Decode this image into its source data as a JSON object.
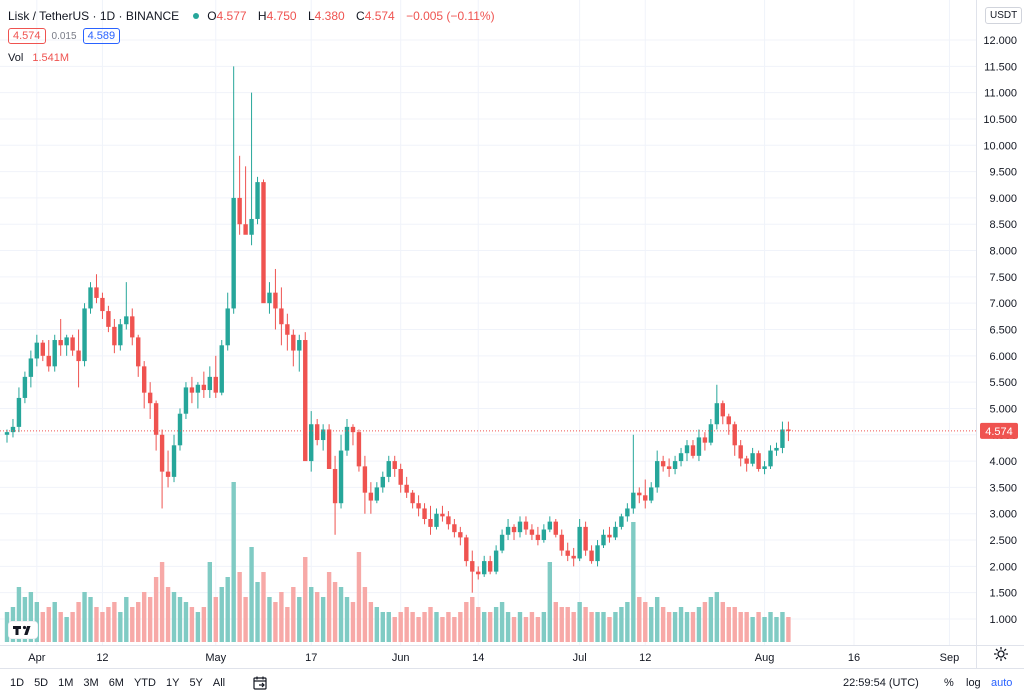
{
  "header": {
    "symbol": "Lisk / TetherUS",
    "interval": "1D",
    "exchange": "BINANCE",
    "ohlc": [
      {
        "label": "O",
        "value": "4.577"
      },
      {
        "label": "H",
        "value": "4.750"
      },
      {
        "label": "L",
        "value": "4.380"
      },
      {
        "label": "C",
        "value": "4.574"
      }
    ],
    "change": "−0.005 (−0.11%)",
    "sell_price": "4.574",
    "spread": "0.015",
    "buy_price": "4.589",
    "volume_label": "Vol",
    "volume_value": "1.541M",
    "currency": "USDT"
  },
  "colors": {
    "up": "#26a69a",
    "down": "#ef5350",
    "up_volume": "#80cbc4",
    "down_volume": "#f7a9a7",
    "accent": "#2962ff",
    "grid": "#f0f3fa"
  },
  "chart_data": {
    "type": "candlestick",
    "y_axis": {
      "min": 0.75,
      "max": 12.25,
      "ticks": [
        "12.000",
        "11.500",
        "11.000",
        "10.500",
        "10.000",
        "9.500",
        "9.000",
        "8.500",
        "8.000",
        "7.500",
        "7.000",
        "6.500",
        "6.000",
        "5.500",
        "5.000",
        "4.500",
        "4.000",
        "3.500",
        "3.000",
        "2.500",
        "2.000",
        "1.500",
        "1.000"
      ]
    },
    "x_axis": {
      "labels": [
        {
          "text": "Apr",
          "index": 5
        },
        {
          "text": "12",
          "index": 16
        },
        {
          "text": "May",
          "index": 35
        },
        {
          "text": "17",
          "index": 51
        },
        {
          "text": "Jun",
          "index": 66
        },
        {
          "text": "14",
          "index": 79
        },
        {
          "text": "Jul",
          "index": 96
        },
        {
          "text": "12",
          "index": 107
        },
        {
          "text": "Aug",
          "index": 127
        },
        {
          "text": "16",
          "index": 142
        },
        {
          "text": "Sep",
          "index": 158
        }
      ]
    },
    "last_price": 4.574,
    "last_price_label": "4.574",
    "grid": true,
    "series": [
      [
        4.5,
        4.6,
        4.35,
        4.55,
        0.6
      ],
      [
        4.55,
        4.8,
        4.45,
        4.65,
        0.7
      ],
      [
        4.65,
        5.4,
        4.55,
        5.2,
        1.1
      ],
      [
        5.2,
        5.7,
        5.1,
        5.6,
        0.9
      ],
      [
        5.6,
        6.1,
        5.4,
        5.95,
        1.0
      ],
      [
        5.95,
        6.4,
        5.8,
        6.25,
        0.8
      ],
      [
        6.25,
        6.3,
        5.9,
        6.0,
        0.6
      ],
      [
        6.0,
        6.3,
        5.7,
        5.8,
        0.7
      ],
      [
        5.8,
        6.4,
        5.7,
        6.3,
        0.8
      ],
      [
        6.3,
        6.7,
        6.0,
        6.2,
        0.6
      ],
      [
        6.2,
        6.4,
        6.0,
        6.35,
        0.5
      ],
      [
        6.35,
        6.4,
        6.0,
        6.1,
        0.6
      ],
      [
        6.1,
        6.5,
        5.4,
        5.9,
        0.8
      ],
      [
        5.9,
        7.0,
        5.8,
        6.9,
        1.0
      ],
      [
        6.9,
        7.4,
        6.8,
        7.3,
        0.9
      ],
      [
        7.3,
        7.55,
        7.0,
        7.1,
        0.7
      ],
      [
        7.1,
        7.2,
        6.7,
        6.85,
        0.6
      ],
      [
        6.85,
        6.95,
        6.45,
        6.55,
        0.7
      ],
      [
        6.55,
        6.7,
        6.05,
        6.2,
        0.8
      ],
      [
        6.2,
        6.7,
        6.1,
        6.6,
        0.6
      ],
      [
        6.6,
        7.4,
        6.5,
        6.75,
        0.9
      ],
      [
        6.75,
        6.9,
        6.2,
        6.35,
        0.7
      ],
      [
        6.35,
        6.4,
        5.6,
        5.8,
        0.8
      ],
      [
        5.8,
        5.9,
        5.0,
        5.3,
        1.0
      ],
      [
        5.3,
        5.5,
        4.8,
        5.1,
        0.9
      ],
      [
        5.1,
        5.15,
        4.2,
        4.5,
        1.3
      ],
      [
        4.5,
        4.6,
        3.1,
        3.8,
        1.6
      ],
      [
        3.8,
        4.2,
        3.5,
        3.7,
        1.1
      ],
      [
        3.7,
        4.5,
        3.6,
        4.3,
        1.0
      ],
      [
        4.3,
        5.0,
        4.2,
        4.9,
        0.9
      ],
      [
        4.9,
        5.5,
        4.8,
        5.4,
        0.8
      ],
      [
        5.4,
        5.6,
        5.1,
        5.3,
        0.7
      ],
      [
        5.3,
        5.5,
        5.0,
        5.45,
        0.6
      ],
      [
        5.45,
        5.7,
        5.2,
        5.35,
        0.7
      ],
      [
        5.35,
        5.8,
        5.2,
        5.6,
        1.6
      ],
      [
        5.6,
        6.0,
        5.2,
        5.3,
        0.9
      ],
      [
        5.3,
        6.3,
        5.25,
        6.2,
        1.1
      ],
      [
        6.2,
        7.2,
        6.1,
        6.9,
        1.3
      ],
      [
        6.9,
        11.5,
        6.8,
        9.0,
        3.2
      ],
      [
        9.0,
        9.8,
        8.3,
        8.5,
        1.4
      ],
      [
        8.5,
        9.6,
        8.4,
        8.3,
        0.9
      ],
      [
        8.3,
        11.0,
        8.1,
        8.6,
        1.9
      ],
      [
        8.6,
        9.4,
        8.5,
        9.3,
        1.2
      ],
      [
        9.3,
        9.35,
        7.1,
        7.0,
        1.4
      ],
      [
        7.0,
        7.4,
        6.8,
        7.2,
        0.9
      ],
      [
        7.2,
        7.65,
        6.5,
        6.9,
        0.8
      ],
      [
        6.9,
        7.3,
        6.2,
        6.6,
        1.0
      ],
      [
        6.6,
        6.8,
        6.1,
        6.4,
        0.7
      ],
      [
        6.4,
        6.5,
        5.8,
        6.1,
        1.1
      ],
      [
        6.1,
        6.4,
        5.7,
        6.3,
        0.9
      ],
      [
        6.3,
        6.45,
        4.8,
        4.0,
        1.7
      ],
      [
        4.0,
        4.95,
        3.8,
        4.7,
        1.1
      ],
      [
        4.7,
        4.8,
        4.3,
        4.4,
        1.0
      ],
      [
        4.4,
        4.7,
        4.2,
        4.6,
        0.9
      ],
      [
        4.6,
        4.7,
        4.0,
        3.85,
        1.4
      ],
      [
        3.85,
        4.1,
        2.6,
        3.2,
        1.2
      ],
      [
        3.2,
        4.5,
        3.1,
        4.2,
        1.1
      ],
      [
        4.2,
        4.8,
        4.1,
        4.65,
        0.9
      ],
      [
        4.65,
        4.7,
        4.3,
        4.55,
        0.8
      ],
      [
        4.55,
        4.6,
        3.8,
        3.9,
        1.8
      ],
      [
        3.9,
        4.1,
        3.0,
        3.4,
        1.1
      ],
      [
        3.4,
        3.6,
        3.0,
        3.25,
        0.8
      ],
      [
        3.25,
        3.6,
        3.2,
        3.5,
        0.7
      ],
      [
        3.5,
        3.8,
        3.4,
        3.7,
        0.6
      ],
      [
        3.7,
        4.1,
        3.6,
        4.0,
        0.6
      ],
      [
        4.0,
        4.1,
        3.7,
        3.85,
        0.5
      ],
      [
        3.85,
        3.95,
        3.4,
        3.55,
        0.6
      ],
      [
        3.55,
        3.7,
        3.3,
        3.4,
        0.7
      ],
      [
        3.4,
        3.45,
        3.1,
        3.2,
        0.6
      ],
      [
        3.2,
        3.35,
        2.95,
        3.1,
        0.5
      ],
      [
        3.1,
        3.2,
        2.8,
        2.9,
        0.6
      ],
      [
        2.9,
        3.15,
        2.6,
        2.75,
        0.7
      ],
      [
        2.75,
        3.1,
        2.7,
        3.0,
        0.6
      ],
      [
        3.0,
        3.15,
        2.85,
        2.95,
        0.5
      ],
      [
        2.95,
        3.05,
        2.7,
        2.8,
        0.6
      ],
      [
        2.8,
        2.9,
        2.55,
        2.65,
        0.5
      ],
      [
        2.65,
        2.75,
        2.4,
        2.55,
        0.6
      ],
      [
        2.55,
        2.6,
        2.0,
        2.1,
        0.8
      ],
      [
        2.1,
        2.3,
        1.5,
        1.9,
        0.9
      ],
      [
        1.9,
        2.0,
        1.75,
        1.85,
        0.7
      ],
      [
        1.85,
        2.2,
        1.8,
        2.1,
        0.6
      ],
      [
        2.1,
        2.2,
        1.85,
        1.9,
        0.6
      ],
      [
        1.9,
        2.4,
        1.85,
        2.3,
        0.7
      ],
      [
        2.3,
        2.7,
        2.25,
        2.6,
        0.8
      ],
      [
        2.6,
        2.9,
        2.5,
        2.75,
        0.6
      ],
      [
        2.75,
        2.8,
        2.5,
        2.65,
        0.5
      ],
      [
        2.65,
        2.95,
        2.55,
        2.85,
        0.6
      ],
      [
        2.85,
        2.95,
        2.6,
        2.7,
        0.5
      ],
      [
        2.7,
        2.8,
        2.5,
        2.6,
        0.6
      ],
      [
        2.6,
        2.75,
        2.4,
        2.5,
        0.5
      ],
      [
        2.5,
        2.8,
        2.45,
        2.7,
        0.6
      ],
      [
        2.7,
        2.95,
        2.65,
        2.85,
        1.6
      ],
      [
        2.85,
        2.9,
        2.55,
        2.6,
        0.8
      ],
      [
        2.6,
        2.7,
        2.2,
        2.3,
        0.7
      ],
      [
        2.3,
        2.45,
        2.1,
        2.2,
        0.7
      ],
      [
        2.2,
        2.35,
        2.0,
        2.15,
        0.6
      ],
      [
        2.15,
        2.9,
        2.1,
        2.75,
        0.8
      ],
      [
        2.75,
        2.85,
        2.2,
        2.3,
        0.7
      ],
      [
        2.3,
        2.4,
        2.05,
        2.1,
        0.6
      ],
      [
        2.1,
        2.5,
        2.0,
        2.4,
        0.6
      ],
      [
        2.4,
        2.7,
        2.35,
        2.6,
        0.6
      ],
      [
        2.6,
        2.75,
        2.45,
        2.55,
        0.5
      ],
      [
        2.55,
        2.85,
        2.5,
        2.75,
        0.6
      ],
      [
        2.75,
        3.0,
        2.7,
        2.95,
        0.7
      ],
      [
        2.95,
        3.2,
        2.85,
        3.1,
        0.8
      ],
      [
        3.1,
        4.5,
        3.0,
        3.4,
        2.4
      ],
      [
        3.4,
        3.5,
        3.2,
        3.35,
        0.9
      ],
      [
        3.35,
        3.65,
        3.1,
        3.25,
        0.8
      ],
      [
        3.25,
        3.6,
        3.2,
        3.5,
        0.7
      ],
      [
        3.5,
        4.2,
        3.4,
        4.0,
        0.9
      ],
      [
        4.0,
        4.1,
        3.8,
        3.9,
        0.7
      ],
      [
        3.9,
        4.05,
        3.7,
        3.85,
        0.6
      ],
      [
        3.85,
        4.1,
        3.75,
        4.0,
        0.6
      ],
      [
        4.0,
        4.25,
        3.9,
        4.15,
        0.7
      ],
      [
        4.15,
        4.4,
        4.0,
        4.3,
        0.6
      ],
      [
        4.3,
        4.4,
        4.05,
        4.1,
        0.6
      ],
      [
        4.1,
        4.6,
        4.0,
        4.45,
        0.7
      ],
      [
        4.45,
        4.55,
        4.2,
        4.35,
        0.8
      ],
      [
        4.35,
        4.8,
        4.3,
        4.7,
        0.9
      ],
      [
        4.7,
        5.45,
        4.6,
        5.1,
        1.0
      ],
      [
        5.1,
        5.15,
        4.7,
        4.85,
        0.8
      ],
      [
        4.85,
        4.9,
        4.5,
        4.7,
        0.7
      ],
      [
        4.7,
        4.75,
        4.1,
        4.3,
        0.7
      ],
      [
        4.3,
        4.4,
        3.9,
        4.05,
        0.6
      ],
      [
        4.05,
        4.1,
        3.8,
        3.95,
        0.6
      ],
      [
        3.95,
        4.25,
        3.9,
        4.15,
        0.5
      ],
      [
        4.15,
        4.2,
        3.8,
        3.85,
        0.6
      ],
      [
        3.85,
        4.0,
        3.75,
        3.9,
        0.5
      ],
      [
        3.9,
        4.3,
        3.85,
        4.2,
        0.6
      ],
      [
        4.2,
        4.35,
        4.1,
        4.25,
        0.5
      ],
      [
        4.25,
        4.75,
        4.15,
        4.6,
        0.6
      ],
      [
        4.6,
        4.75,
        4.38,
        4.574,
        0.5
      ]
    ]
  },
  "bottom": {
    "ranges": [
      "1D",
      "5D",
      "1M",
      "3M",
      "6M",
      "YTD",
      "1Y",
      "5Y",
      "All"
    ],
    "clock": "22:59:54 (UTC)",
    "percent": "%",
    "log": "log",
    "auto": "auto"
  }
}
